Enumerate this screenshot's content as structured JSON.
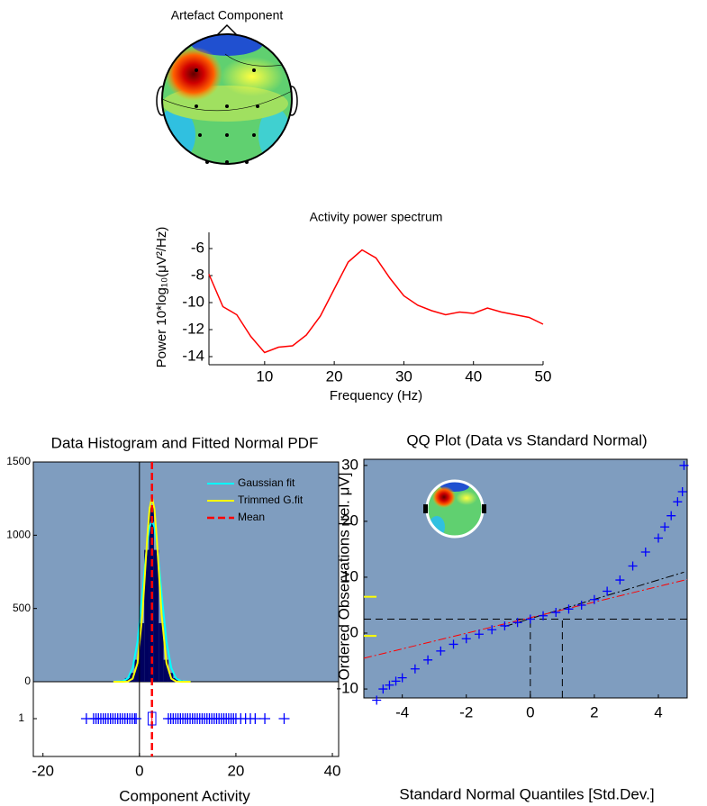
{
  "topomap": {
    "title": "Artefact Component"
  },
  "chart_data": [
    {
      "type": "line",
      "title": "Activity power spectrum",
      "x_label": "Frequency (Hz)",
      "y_label": "Power 10*log₁₀(μV²/Hz)",
      "x": [
        2,
        4,
        6,
        8,
        10,
        12,
        14,
        16,
        18,
        20,
        22,
        24,
        26,
        28,
        30,
        32,
        34,
        36,
        38,
        40,
        42,
        44,
        46,
        48,
        50
      ],
      "series": [
        {
          "color": "#ff0000",
          "values": [
            -7.9,
            -10.3,
            -10.9,
            -12.5,
            -13.7,
            -13.3,
            -13.2,
            -12.4,
            -11,
            -9,
            -7,
            -6.1,
            -6.7,
            -8.2,
            -9.5,
            -10.2,
            -10.6,
            -10.9,
            -10.7,
            -10.8,
            -10.4,
            -10.7,
            -10.9,
            -11.1,
            -11.6
          ]
        }
      ],
      "xlim": [
        2,
        50
      ],
      "ylim": [
        -14.6,
        -4.8
      ],
      "xticks": [
        10,
        20,
        30,
        40,
        50
      ],
      "yticks": [
        -6,
        -8,
        -10,
        -12,
        -14
      ]
    },
    {
      "type": "histogram",
      "title": "Data Histogram and Fitted Normal PDF",
      "x_label": "Component Activity",
      "bins": [
        -6,
        -5,
        -4,
        -3,
        -2,
        -1,
        0,
        1,
        2,
        3,
        4,
        5,
        6,
        7,
        8,
        9,
        10
      ],
      "counts": [
        2,
        5,
        10,
        25,
        60,
        150,
        400,
        900,
        1200,
        900,
        400,
        150,
        60,
        25,
        10,
        4
      ],
      "color": "#00005f",
      "background": "#7f9dbf",
      "fit_x": [
        -5.4,
        -3.4,
        -2.4,
        -1.4,
        -0.4,
        0.6,
        1.1,
        1.6,
        2.1,
        2.6,
        3.1,
        3.6,
        4.1,
        4.6,
        5.6,
        6.6,
        7.6,
        8.6,
        10.6
      ],
      "series": [
        {
          "name": "Gaussian fit",
          "color": "#00ffff",
          "values": [
            0,
            4,
            23,
            94,
            274,
            593,
            778,
            943,
            1058,
            1100,
            1058,
            943,
            778,
            593,
            274,
            94,
            23,
            4,
            0
          ]
        },
        {
          "name": "Trimmed G.fit",
          "color": "#ffff00",
          "values": [
            0,
            0,
            2,
            21,
            127,
            454,
            709,
            977,
            1182,
            1260,
            1182,
            977,
            709,
            454,
            127,
            21,
            2,
            0,
            0
          ]
        }
      ],
      "mean": 2.6,
      "mean_label": "Mean",
      "mean_color": "#ff0000",
      "reference_x": 0,
      "box": {
        "q1": 1.8,
        "median": 2.6,
        "q3": 3.4
      },
      "box_categories": [
        "1"
      ],
      "outliers": [
        -11,
        -9.5,
        -9,
        -8.5,
        -8,
        -7.5,
        -7,
        -6.5,
        -6,
        -5.5,
        -5,
        -4.5,
        -4,
        -3.5,
        -3,
        -2.5,
        -2,
        -1.5,
        -1,
        -0.7,
        6,
        6.5,
        7,
        7.5,
        8,
        8.5,
        9,
        9.5,
        10,
        10.5,
        11,
        11.5,
        12,
        12.5,
        13,
        13.5,
        14,
        14.5,
        15,
        15.5,
        16,
        16.5,
        17,
        17.5,
        18,
        18.5,
        19,
        19.5,
        20,
        21,
        22,
        23,
        24,
        26,
        30
      ],
      "xlim": [
        -22,
        41.3
      ],
      "ylim": [
        0,
        1500
      ],
      "xticks": [
        -20,
        0,
        20,
        40
      ],
      "yticks": [
        0,
        500,
        1000,
        1500
      ]
    },
    {
      "type": "qq",
      "title": "QQ Plot (Data vs Standard Normal)",
      "x_label": "Standard Normal Quantiles [Std.Dev.]",
      "y_label": "Ordered Observations [rel. μV]",
      "x": [
        -4.8,
        -4.6,
        -4.4,
        -4.2,
        -4,
        -3.6,
        -3.2,
        -2.8,
        -2.4,
        -2,
        -1.6,
        -1.2,
        -0.8,
        -0.4,
        0,
        0.4,
        0.8,
        1.2,
        1.6,
        2,
        2.4,
        2.8,
        3.2,
        3.6,
        4,
        4.2,
        4.4,
        4.6,
        4.75,
        4.8
      ],
      "y": [
        -12,
        -10,
        -9.3,
        -8.6,
        -8,
        -6.4,
        -4.8,
        -3.2,
        -2,
        -1,
        -0.2,
        0.6,
        1.3,
        1.9,
        2.5,
        3.1,
        3.7,
        4.3,
        5,
        6,
        7.5,
        9.5,
        12,
        14.5,
        17,
        19,
        21,
        23.5,
        25.3,
        30
      ],
      "color": "#0000ff",
      "background": "#7f9dbf",
      "fit_lines": [
        {
          "color": "#000000",
          "x": [
            -0.8,
            4.8
          ],
          "y": [
            1.2,
            10.9
          ]
        },
        {
          "color": "#ff0000",
          "x": [
            -5.2,
            4.9
          ],
          "y": [
            -4.5,
            9.6
          ]
        }
      ],
      "ref_y": 2.5,
      "ref_x": [
        0,
        1
      ],
      "thresholds": [
        6.5,
        -0.5
      ],
      "threshold_color": "#ffff00",
      "xlim": [
        -5.2,
        4.9
      ],
      "ylim": [
        -11.6,
        31.1
      ],
      "xticks": [
        -4,
        -2,
        0,
        2,
        4
      ],
      "yticks": [
        -10,
        0,
        10,
        20,
        30
      ]
    }
  ]
}
